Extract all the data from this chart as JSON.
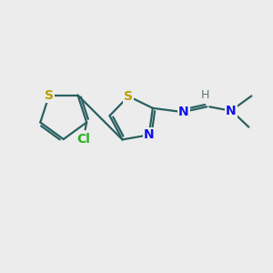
{
  "bg_color": "#ececec",
  "bond_color": "#2a6060",
  "S_color": "#b8a000",
  "N_color": "#1010ee",
  "Cl_color": "#28b020",
  "H_color": "#607878",
  "font_size": 10,
  "small_font_size": 9,
  "line_width": 1.6,
  "figsize": [
    3.0,
    3.0
  ],
  "dpi": 100,
  "xlim": [
    0,
    10
  ],
  "ylim": [
    0,
    10
  ]
}
